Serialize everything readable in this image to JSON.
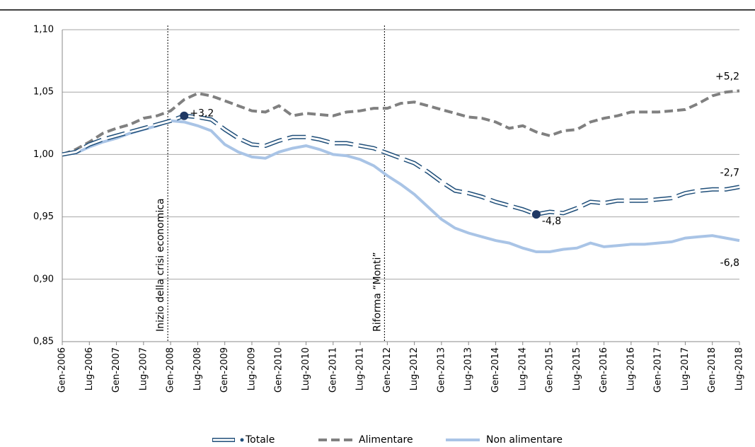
{
  "chart_data": {
    "type": "line",
    "categories": [
      "Gen-2006",
      null,
      "Lug-2006",
      null,
      "Gen-2007",
      null,
      "Lug-2007",
      null,
      "Gen-2008",
      null,
      "Lug-2008",
      null,
      "Gen-2009",
      null,
      "Lug-2009",
      null,
      "Gen-2010",
      null,
      "Lug-2010",
      null,
      "Gen-2011",
      null,
      "Lug-2011",
      null,
      "Gen-2012",
      null,
      "Lug-2012",
      null,
      "Gen-2013",
      null,
      "Lug-2013",
      null,
      "Gen-2014",
      null,
      "Lug-2014",
      null,
      "Gen-2015",
      null,
      "Lug-2015",
      null,
      "Gen-2016",
      null,
      "Lug-2016",
      null,
      "Gen-2017",
      null,
      "Lug-2017",
      null,
      "Gen-2018",
      null,
      "Lug-2018"
    ],
    "series": [
      {
        "name": "Totale",
        "color": "#1f4e79",
        "style": "double-dash",
        "values": [
          1.0,
          1.002,
          1.008,
          1.012,
          1.015,
          1.018,
          1.021,
          1.024,
          1.027,
          1.031,
          1.03,
          1.028,
          1.02,
          1.013,
          1.008,
          1.007,
          1.011,
          1.014,
          1.014,
          1.012,
          1.009,
          1.009,
          1.007,
          1.005,
          1.001,
          0.997,
          0.993,
          0.986,
          0.978,
          0.971,
          0.969,
          0.966,
          0.962,
          0.959,
          0.956,
          0.952,
          0.954,
          0.953,
          0.957,
          0.962,
          0.961,
          0.963,
          0.963,
          0.963,
          0.964,
          0.965,
          0.969,
          0.971,
          0.972,
          0.972,
          0.974
        ]
      },
      {
        "name": "Alimentare",
        "color": "#808080",
        "style": "dash",
        "values": [
          1.0,
          1.004,
          1.01,
          1.017,
          1.021,
          1.024,
          1.029,
          1.031,
          1.035,
          1.044,
          1.049,
          1.047,
          1.043,
          1.039,
          1.035,
          1.034,
          1.039,
          1.031,
          1.033,
          1.032,
          1.031,
          1.034,
          1.035,
          1.037,
          1.037,
          1.041,
          1.042,
          1.039,
          1.036,
          1.033,
          1.03,
          1.029,
          1.026,
          1.021,
          1.023,
          1.018,
          1.015,
          1.019,
          1.02,
          1.026,
          1.029,
          1.031,
          1.034,
          1.034,
          1.034,
          1.035,
          1.036,
          1.041,
          1.047,
          1.05,
          1.051
        ]
      },
      {
        "name": "Non alimentare",
        "color": "#a9c4e6",
        "style": "solid",
        "values": [
          1.0,
          1.001,
          1.006,
          1.01,
          1.013,
          1.017,
          1.02,
          1.023,
          1.027,
          1.026,
          1.023,
          1.019,
          1.008,
          1.002,
          0.998,
          0.997,
          1.002,
          1.005,
          1.007,
          1.004,
          1.0,
          0.999,
          0.996,
          0.991,
          0.983,
          0.976,
          0.968,
          0.958,
          0.948,
          0.941,
          0.937,
          0.934,
          0.931,
          0.929,
          0.925,
          0.922,
          0.922,
          0.924,
          0.925,
          0.929,
          0.926,
          0.927,
          0.928,
          0.928,
          0.929,
          0.93,
          0.933,
          0.934,
          0.935,
          0.933,
          0.931
        ]
      }
    ],
    "ylim": [
      0.85,
      1.1
    ],
    "yticks": [
      {
        "value": 0.85,
        "label": "0,85"
      },
      {
        "value": 0.9,
        "label": "0,90"
      },
      {
        "value": 0.95,
        "label": "0,95"
      },
      {
        "value": 1.0,
        "label": "1,00"
      },
      {
        "value": 1.05,
        "label": "1,05"
      },
      {
        "value": 1.1,
        "label": "1,10"
      }
    ],
    "grid": true,
    "legend": "bottom",
    "vlines": [
      {
        "text": "Inizio della crisi economica",
        "point": 8
      },
      {
        "text": "Riforma “Monti”",
        "point": 24
      }
    ],
    "annotations": [
      {
        "text": "+3,2",
        "series": 0,
        "point": 9,
        "marker": true
      },
      {
        "text": "-4,8",
        "series": 0,
        "point": 35,
        "marker": true
      },
      {
        "text": "+5,2",
        "series": 1,
        "point": 50,
        "marker": false
      },
      {
        "text": "-2,7",
        "series": 0,
        "point": 50,
        "marker": false
      },
      {
        "text": "-6,8",
        "series": 2,
        "point": 50,
        "marker": false
      }
    ]
  }
}
